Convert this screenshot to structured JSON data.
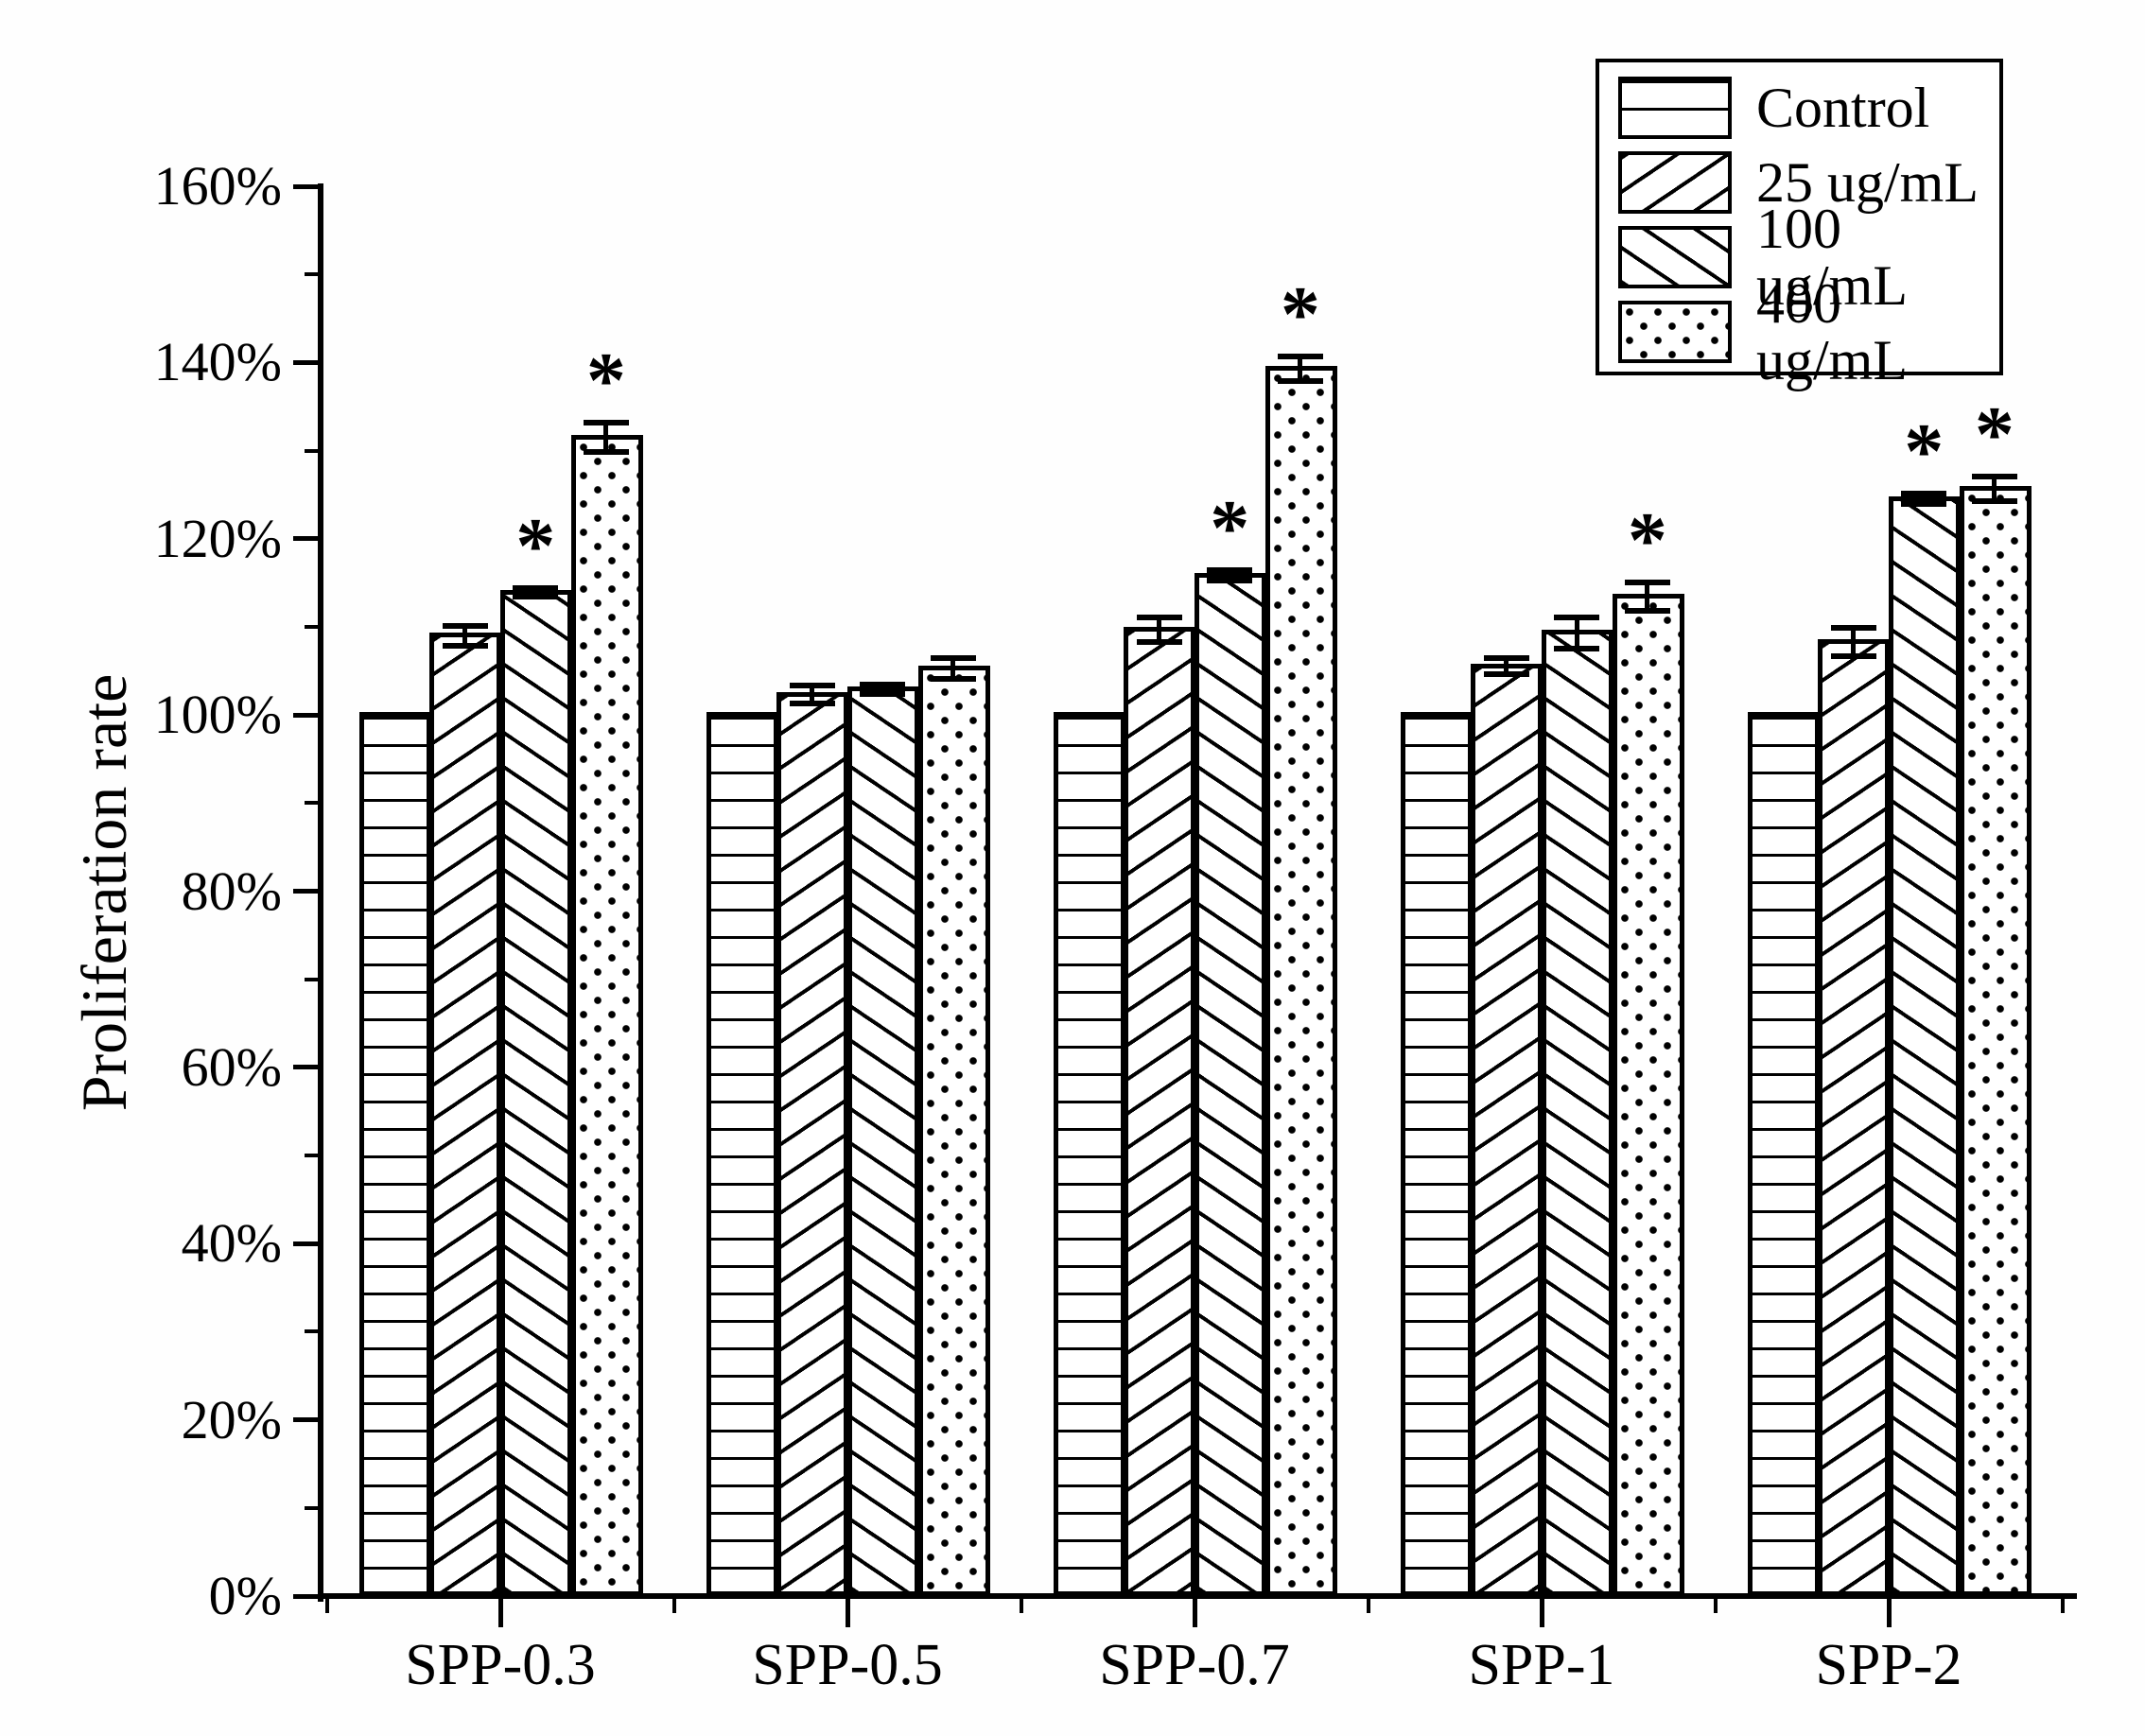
{
  "figure": {
    "background": "#ffffff",
    "ink_color": "#000000"
  },
  "chart_data": {
    "type": "bar",
    "title": "",
    "xlabel": "",
    "ylabel": "Proliferation rate",
    "ylim": [
      0,
      160
    ],
    "ytick_major_step": 20,
    "ytick_minor_step": 10,
    "ytick_labels": [
      "0%",
      "20%",
      "40%",
      "60%",
      "80%",
      "100%",
      "120%",
      "140%",
      "160%"
    ],
    "grid": false,
    "legend_position": "top-right",
    "significance_marker": "*",
    "categories": [
      "SPP-0.3",
      "SPP-0.5",
      "SPP-0.7",
      "SPP-1",
      "SPP-2"
    ],
    "series": [
      {
        "name": "Control",
        "hatch": "horizontal-lines",
        "values": [
          100,
          100,
          100,
          100,
          100
        ],
        "errors": [
          0,
          0,
          0,
          0,
          0
        ],
        "significant": [
          false,
          false,
          false,
          false,
          false
        ]
      },
      {
        "name": "25 ug/mL",
        "hatch": "diagonal-up",
        "values": [
          109.0,
          102.3,
          109.7,
          105.5,
          108.3
        ],
        "errors": [
          1.1,
          1.0,
          1.4,
          0.9,
          1.6
        ],
        "significant": [
          false,
          false,
          false,
          false,
          false
        ]
      },
      {
        "name": "100 ug/mL",
        "hatch": "diagonal-down",
        "values": [
          113.9,
          102.9,
          115.8,
          109.3,
          124.5
        ],
        "errors": [
          0.5,
          0.5,
          0.6,
          1.8,
          0.6
        ],
        "significant": [
          true,
          false,
          true,
          false,
          true
        ]
      },
      {
        "name": "400 ug/mL",
        "hatch": "dots",
        "values": [
          131.5,
          105.3,
          139.3,
          113.4,
          125.7
        ],
        "errors": [
          1.7,
          1.2,
          1.4,
          1.6,
          1.4
        ],
        "significant": [
          true,
          false,
          true,
          true,
          true
        ]
      }
    ]
  }
}
